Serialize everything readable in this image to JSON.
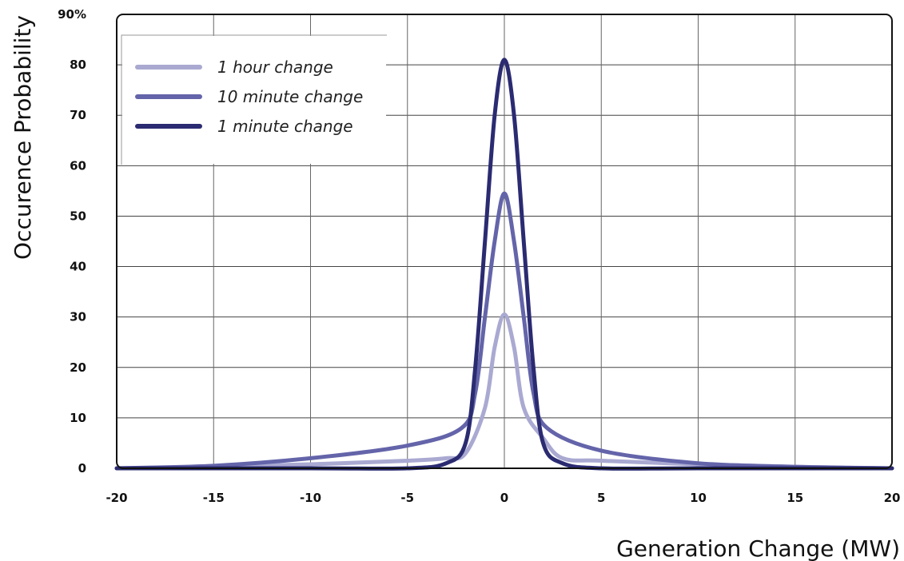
{
  "chart_data": {
    "type": "line",
    "ylabel": "Occurence Probability",
    "xlabel": "Generation Change (MW)",
    "xlim": [
      -20,
      20
    ],
    "ylim": [
      0,
      90
    ],
    "x_ticks": [
      "-20",
      "-15",
      "-10",
      "-5",
      "0",
      "5",
      "10",
      "15",
      "20"
    ],
    "y_ticks": [
      "0",
      "10",
      "20",
      "30",
      "40",
      "50",
      "60",
      "70",
      "80",
      "90%"
    ],
    "grid": true,
    "legend_position": "top-left",
    "series": [
      {
        "name": "1 hour change",
        "color": "#a9a9d2",
        "x": [
          -20,
          -15,
          -10,
          -5,
          -3,
          -2,
          -1,
          -0.5,
          0,
          0.5,
          1,
          2,
          3,
          5,
          10,
          15,
          20
        ],
        "y": [
          0,
          0.3,
          0.8,
          1.5,
          2,
          3,
          12,
          24,
          30.5,
          24,
          12,
          6,
          2,
          1.5,
          0.8,
          0.3,
          0
        ]
      },
      {
        "name": "10 minute change",
        "color": "#6464aa",
        "x": [
          -20,
          -15,
          -10,
          -5,
          -2.2,
          -1.5,
          -1,
          -0.5,
          0,
          0.5,
          1,
          1.5,
          2.2,
          5,
          10,
          15,
          20
        ],
        "y": [
          0,
          0.5,
          2,
          4.5,
          8,
          15,
          30,
          45,
          54.5,
          45,
          30,
          15,
          8,
          3.5,
          1,
          0.3,
          0
        ]
      },
      {
        "name": "1 minute change",
        "color": "#2b2b72",
        "x": [
          -20,
          -10,
          -5,
          -3,
          -2,
          -1.5,
          -1,
          -0.5,
          0,
          0.5,
          1,
          1.5,
          2,
          3,
          5,
          10,
          20
        ],
        "y": [
          0,
          0,
          0,
          1,
          5,
          20,
          45,
          70,
          81,
          70,
          45,
          20,
          5,
          1,
          0,
          0,
          0
        ]
      }
    ]
  }
}
